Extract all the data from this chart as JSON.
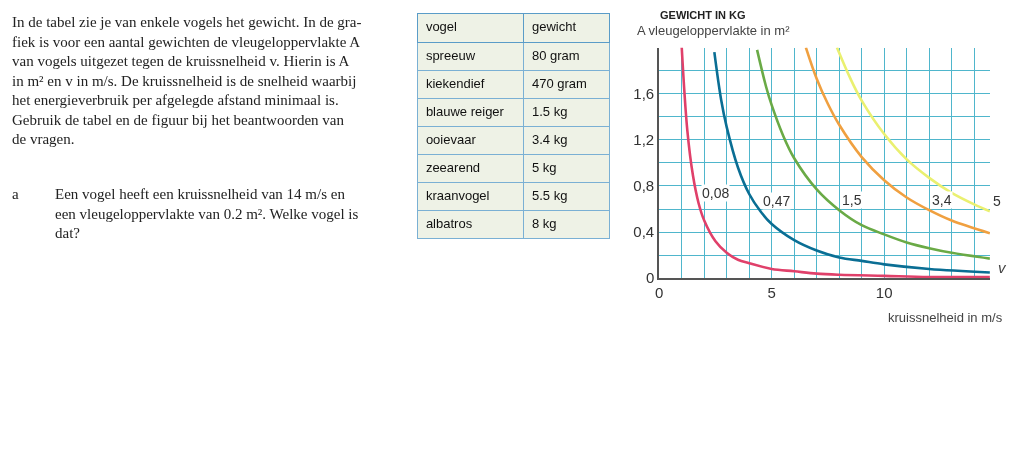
{
  "chart_data": [
    {
      "type": "other",
      "annotations": [
        "In de tabel zie je van enkele vogels het gewicht. In de gra-\nfiek is voor een aantal gewichten de vleugeloppervlakte A\nvan vogels uitgezet tegen de kruissnelheid v. Hierin is A\nin m² en v in m/s. De kruissnelheid is de snelheid waarbij\nhet energieverbruik per afgelegde afstand minimaal is.\nGebruik de tabel en de figuur bij het beantwoorden van\nde vragen.",
        "a",
        "Een vogel heeft een kruissnelheid van 14 m/s en\neen vleugeloppervlakte van 0.2 m². Welke vogel is\ndat?"
      ]
    },
    {
      "type": "other",
      "annotations": [
        "vogel",
        "gewicht",
        "spreeuw",
        "80 gram",
        "kiekendief",
        "470 gram",
        "blauwe reiger",
        "1.5 kg",
        "ooievaar",
        "3.4 kg",
        "zeearend",
        "5 kg",
        "kraanvogel",
        "5.5 kg",
        "albatros",
        "8 kg"
      ]
    },
    {
      "type": "line",
      "legend_title": "GEWICHT IN KG",
      "ylabel": "A vleugeloppervlakte in m²",
      "xlabel": "kruissnelheid in m/s",
      "annotations": [
        "v"
      ],
      "series": [
        {
          "name": "0,08",
          "color": "#e0406a",
          "x": [
            1,
            1.25,
            1.5,
            1.75,
            2,
            2.5,
            3,
            3.5,
            4,
            5,
            6,
            7,
            8,
            10,
            12,
            14.7
          ],
          "values": [
            2.0,
            1.28,
            0.89,
            0.65,
            0.5,
            0.32,
            0.22,
            0.16,
            0.13,
            0.08,
            0.06,
            0.04,
            0.03,
            0.02,
            0.01,
            0.01
          ]
        },
        {
          "name": "0,47",
          "color": "#0a6e94",
          "x": [
            2.45,
            2.75,
            3,
            3.5,
            4,
            4.5,
            5,
            6,
            7,
            8,
            9,
            10,
            12,
            14.7
          ],
          "values": [
            1.96,
            1.55,
            1.31,
            0.96,
            0.73,
            0.58,
            0.47,
            0.33,
            0.24,
            0.18,
            0.15,
            0.12,
            0.08,
            0.05
          ]
        },
        {
          "name": "1,5",
          "color": "#6aaa46",
          "x": [
            4.35,
            4.75,
            5,
            5.5,
            6,
            7,
            8,
            9,
            10,
            11,
            12,
            13,
            14.7
          ],
          "values": [
            1.98,
            1.66,
            1.5,
            1.24,
            1.04,
            0.77,
            0.59,
            0.46,
            0.38,
            0.31,
            0.26,
            0.22,
            0.17
          ]
        },
        {
          "name": "3,4",
          "color": "#f0a040",
          "x": [
            6.52,
            7,
            7.5,
            8,
            9,
            10,
            11,
            12,
            13,
            14.7
          ],
          "values": [
            2.0,
            1.73,
            1.51,
            1.33,
            1.05,
            0.85,
            0.7,
            0.59,
            0.5,
            0.39
          ]
        },
        {
          "name": "5",
          "color": "#eaf070",
          "x": [
            7.9,
            8.5,
            9,
            10,
            11,
            12,
            13,
            14,
            14.7
          ],
          "values": [
            2.0,
            1.73,
            1.54,
            1.25,
            1.03,
            0.87,
            0.74,
            0.64,
            0.58
          ]
        }
      ],
      "xlim": [
        0,
        14.7
      ],
      "ylim": [
        0,
        2.0
      ],
      "xticks": [
        0,
        {
          "value": 1,
          "label": null
        },
        {
          "value": 2,
          "label": null
        },
        {
          "value": 3,
          "label": null
        },
        {
          "value": 4,
          "label": null
        },
        5,
        {
          "value": 6,
          "label": null
        },
        {
          "value": 7,
          "label": null
        },
        {
          "value": 8,
          "label": null
        },
        {
          "value": 9,
          "label": null
        },
        10,
        {
          "value": 11,
          "label": null
        },
        {
          "value": 12,
          "label": null
        },
        {
          "value": 13,
          "label": null
        },
        {
          "value": 14,
          "label": null
        }
      ],
      "yticks": [
        0,
        {
          "value": 0.2,
          "label": null
        },
        {
          "value": 0.4,
          "label": "0,4"
        },
        {
          "value": 0.6,
          "label": null
        },
        {
          "value": 0.8,
          "label": "0,8"
        },
        {
          "value": 1.0,
          "label": null
        },
        {
          "value": 1.2,
          "label": "1,2"
        },
        {
          "value": 1.4,
          "label": null
        },
        {
          "value": 1.6,
          "label": "1,6"
        },
        {
          "value": 1.8,
          "label": null
        }
      ],
      "grid": true,
      "legend": false,
      "marker": "none",
      "line_style": "solid"
    }
  ]
}
